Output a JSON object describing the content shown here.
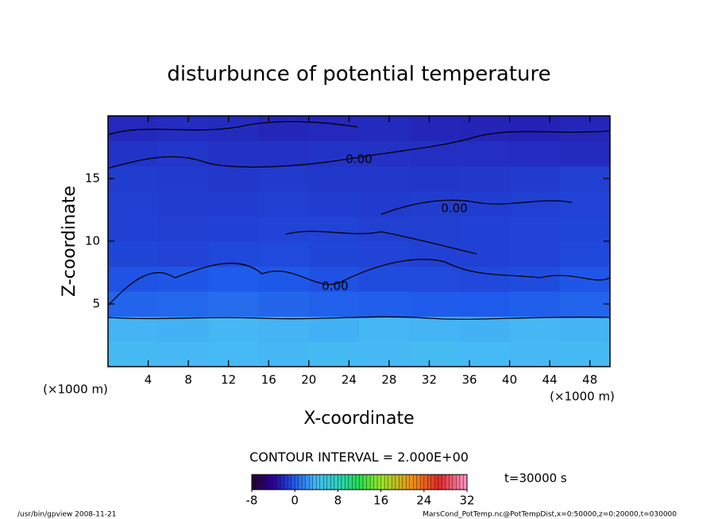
{
  "chart_data": {
    "type": "contour",
    "title": "disturbunce of potential temperature",
    "x_label": "X-coordinate",
    "y_label": "Z-coordinate",
    "x_unit": "(×1000 m)",
    "xlim": [
      0,
      50
    ],
    "ylim": [
      0,
      20
    ],
    "xticks": [
      4,
      8,
      12,
      16,
      20,
      24,
      28,
      32,
      36,
      40,
      44,
      48
    ],
    "yticks": [
      5,
      10,
      15
    ],
    "x_edges": [
      0,
      5,
      10,
      15,
      20,
      25,
      30,
      35,
      40,
      45,
      50
    ],
    "z_edges": [
      0,
      2,
      4,
      6,
      8,
      10,
      12,
      14,
      16,
      18,
      20
    ],
    "values": [
      [
        4.2,
        4.0,
        4.1,
        3.9,
        4.2,
        4.0,
        4.3,
        4.1,
        4.0,
        4.2
      ],
      [
        3.8,
        3.7,
        3.9,
        3.8,
        3.6,
        3.9,
        3.8,
        3.7,
        3.9,
        3.8
      ],
      [
        0.4,
        0.6,
        0.8,
        0.5,
        0.3,
        0.2,
        0.1,
        0.0,
        0.2,
        0.4
      ],
      [
        -0.3,
        -0.2,
        0.1,
        -0.1,
        -0.4,
        -0.6,
        -0.7,
        -0.8,
        -0.6,
        -0.2
      ],
      [
        -0.9,
        -1.0,
        -0.8,
        -0.7,
        -0.9,
        -1.0,
        -1.1,
        -1.1,
        -1.0,
        -0.8
      ],
      [
        -1.1,
        -1.2,
        -1.1,
        -1.0,
        -1.0,
        -1.2,
        -1.2,
        -1.1,
        -1.0,
        -0.9
      ],
      [
        -1.2,
        -1.3,
        -1.3,
        -1.2,
        -1.3,
        -1.4,
        -1.3,
        -1.3,
        -1.2,
        -1.0
      ],
      [
        -1.3,
        -1.4,
        -1.5,
        -1.4,
        -1.5,
        -1.5,
        -1.6,
        -1.5,
        -1.4,
        -1.2
      ],
      [
        -1.7,
        -1.6,
        -1.8,
        -1.8,
        -1.7,
        -1.8,
        -1.9,
        -1.9,
        -2.0,
        -2.1
      ],
      [
        -2.2,
        -2.0,
        -2.1,
        -2.3,
        -2.2,
        -2.1,
        -2.3,
        -2.4,
        -2.5,
        -2.3
      ]
    ],
    "contour_labels": [
      "0.00",
      "0.00",
      "0.00"
    ],
    "contour_interval_text": "CONTOUR INTERVAL = 2.000E+00",
    "colorbar": {
      "range": [
        -8,
        32
      ],
      "ticks": [
        -8,
        0,
        8,
        16,
        24,
        32
      ]
    },
    "time_label": "t=30000 s",
    "footer_left": "/usr/bin/gpview  2008-11-21",
    "footer_right": "MarsCond_PotTemp.nc@PotTempDist,x=0:50000,z=0:20000,t=030000"
  }
}
